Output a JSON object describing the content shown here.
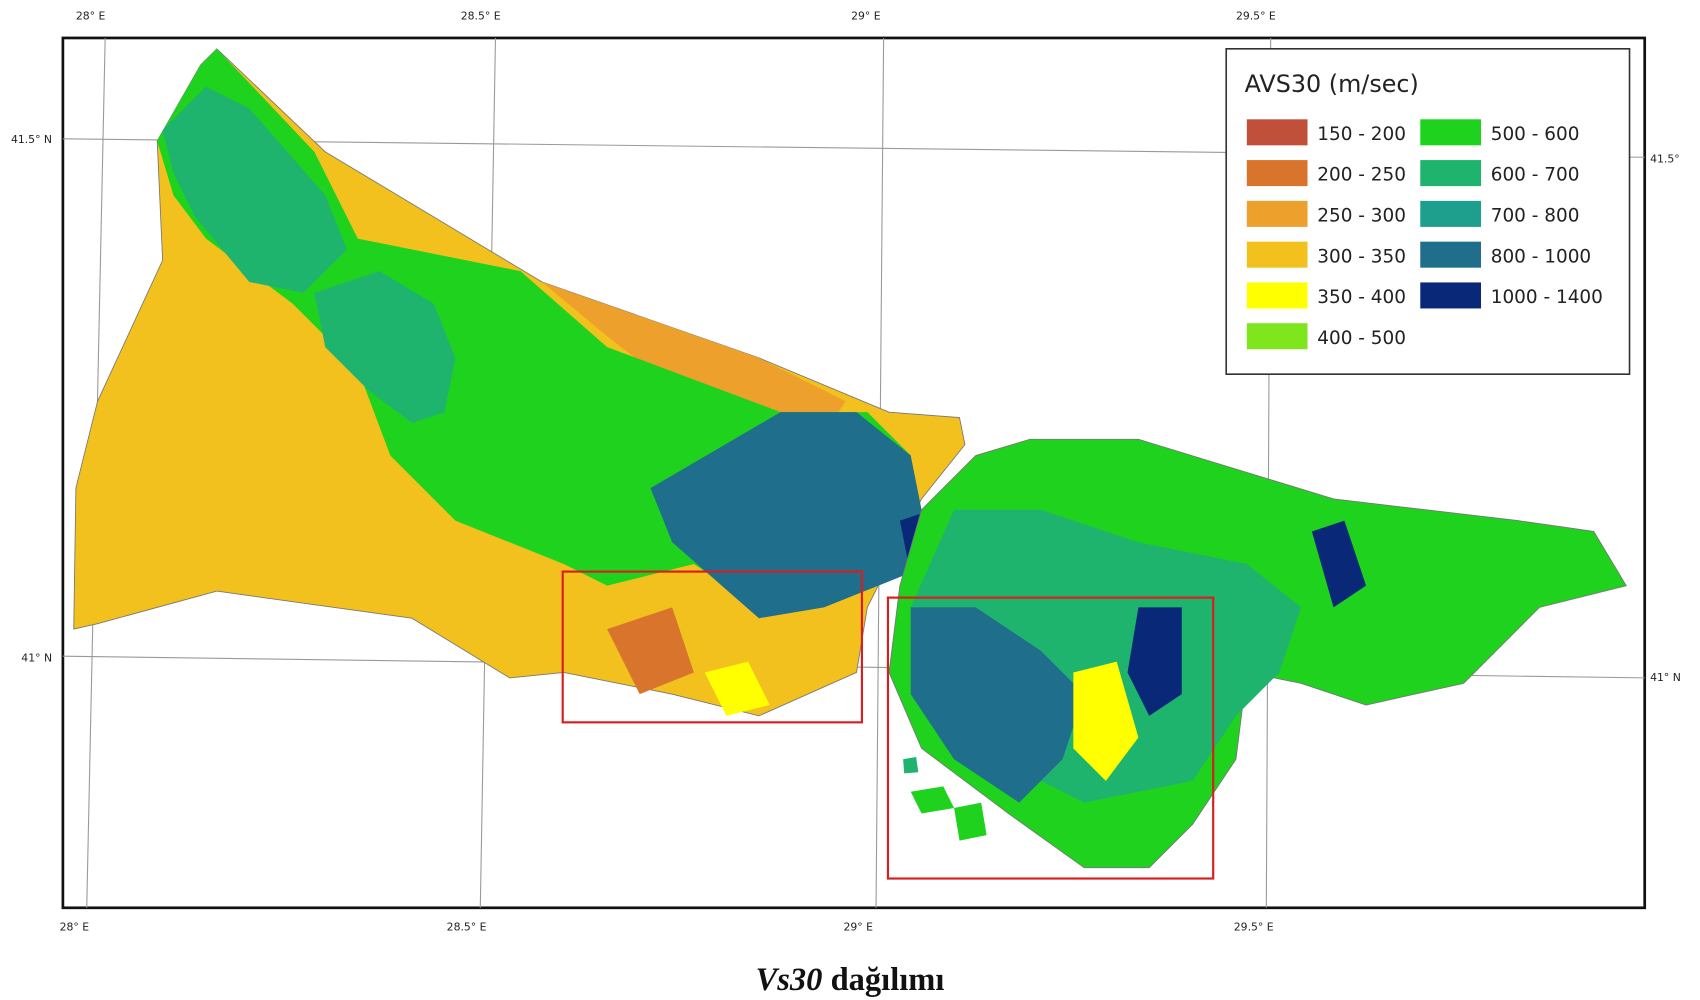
{
  "map": {
    "legend": {
      "title": "AVS30 (m/sec)",
      "items": [
        {
          "label": "150 - 200",
          "color": "#c0503a"
        },
        {
          "label": "200 - 250",
          "color": "#d9742c"
        },
        {
          "label": "250 - 300",
          "color": "#eda02c"
        },
        {
          "label": "300 - 350",
          "color": "#f2c11e"
        },
        {
          "label": "350 - 400",
          "color": "#ffff00"
        },
        {
          "label": "400 - 500",
          "color": "#7fe61e"
        },
        {
          "label": "500 - 600",
          "color": "#1ed21e"
        },
        {
          "label": "600 - 700",
          "color": "#1eb46e"
        },
        {
          "label": "700 - 800",
          "color": "#1e9e8c"
        },
        {
          "label": "800 - 1000",
          "color": "#1e6e8c"
        },
        {
          "label": "1000 - 1400",
          "color": "#0a2878"
        }
      ]
    },
    "graticule": {
      "top": [
        "28° E",
        "28.5° E",
        "29° E",
        "29.5° E"
      ],
      "bottom": [
        "28° E",
        "28.5° E",
        "29° E",
        "29.5° E"
      ],
      "left": [
        "41.5° N",
        "41° N"
      ],
      "right": [
        "41.5°",
        "41° N"
      ]
    },
    "caption": {
      "italic": "Vs30",
      "text": "dağılımı"
    }
  }
}
